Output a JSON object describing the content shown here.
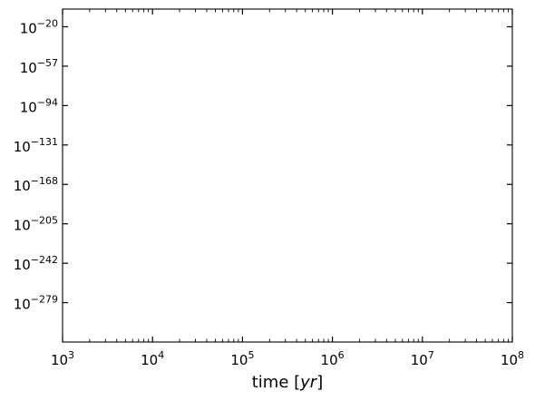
{
  "chart_data": {
    "type": "line",
    "title": "",
    "xlabel": "time [yr]",
    "ylabel": "",
    "x_scale": "log",
    "y_scale": "log",
    "xlim": [
      1000,
      100000000
    ],
    "ylim": [
      -316,
      -3.4
    ],
    "ylim_note": "y limits are log10 of the value (axis spans roughly 10^-316 to 10^-3.4)",
    "x_ticks": [
      {
        "base": "10",
        "exp": "3",
        "value": 1000
      },
      {
        "base": "10",
        "exp": "4",
        "value": 10000
      },
      {
        "base": "10",
        "exp": "5",
        "value": 100000
      },
      {
        "base": "10",
        "exp": "6",
        "value": 1000000
      },
      {
        "base": "10",
        "exp": "7",
        "value": 10000000
      },
      {
        "base": "10",
        "exp": "8",
        "value": 100000000
      }
    ],
    "y_ticks": [
      {
        "base": "10",
        "exp": "−20",
        "log10": -20
      },
      {
        "base": "10",
        "exp": "−57",
        "log10": -57
      },
      {
        "base": "10",
        "exp": "−94",
        "log10": -94
      },
      {
        "base": "10",
        "exp": "−131",
        "log10": -131
      },
      {
        "base": "10",
        "exp": "−168",
        "log10": -168
      },
      {
        "base": "10",
        "exp": "−205",
        "log10": -205
      },
      {
        "base": "10",
        "exp": "−242",
        "log10": -242
      },
      {
        "base": "10",
        "exp": "−279",
        "log10": -279
      }
    ],
    "series": [],
    "grid": false,
    "legend": "none",
    "tick_direction": "in",
    "ticks_on_all_sides": true
  }
}
